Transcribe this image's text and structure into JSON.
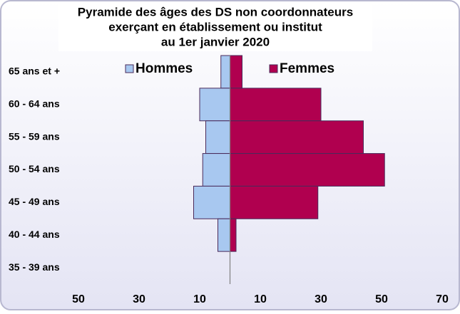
{
  "chart_data": {
    "type": "bar",
    "orientation": "horizontal",
    "title": [
      "Pyramide des âges  des DS non coordonnateurs",
      "exerçant en établissement ou institut",
      "au 1er janvier 2020"
    ],
    "categories": [
      "65 ans et +",
      "60 - 64 ans",
      "55 - 59 ans",
      "50 - 54 ans",
      "45 - 49 ans",
      "40 - 44 ans",
      "35 - 39 ans"
    ],
    "series": [
      {
        "name": "Hommes",
        "color": "#a8c8f0",
        "values": [
          -3,
          -10,
          -8,
          -9,
          -12,
          -4,
          0
        ]
      },
      {
        "name": "Femmes",
        "color": "#b0004f",
        "values": [
          4,
          30,
          44,
          51,
          29,
          2,
          0
        ]
      }
    ],
    "xlim": [
      -50,
      70
    ],
    "xticks": [
      {
        "value": -50,
        "label": "50"
      },
      {
        "value": -30,
        "label": "30"
      },
      {
        "value": -10,
        "label": "10"
      },
      10,
      30,
      50,
      70
    ],
    "grid": false
  }
}
